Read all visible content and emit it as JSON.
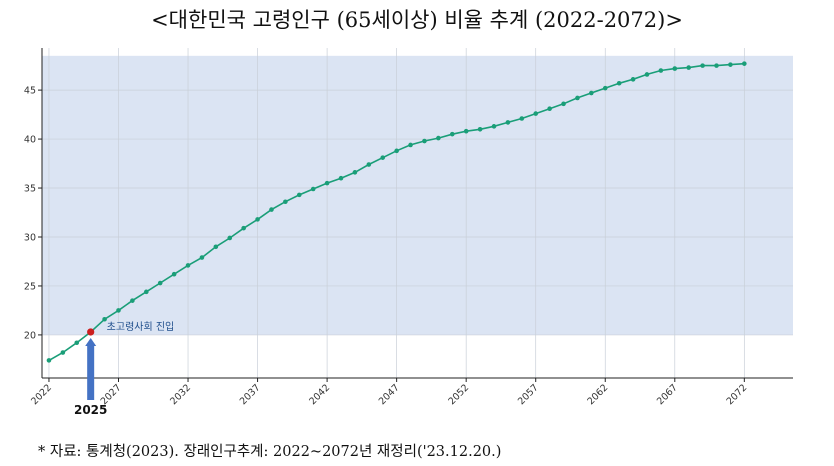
{
  "title": "<대한민국 고령인구 (65세이상) 비율 추계 (2022-2072)>",
  "source": "* 자료: 통계청(2023). 장래인구추계: 2022~2072년 재정리('23.12.20.)",
  "colors": {
    "line": "#1a9e78",
    "highlight_band": "#dbe4f3",
    "highlight_point": "#cc1f1f",
    "arrow": "#4472c4",
    "annotation_text": "#1f4e8c"
  },
  "chart_data": {
    "type": "line",
    "x": [
      2022,
      2023,
      2024,
      2025,
      2026,
      2027,
      2028,
      2029,
      2030,
      2031,
      2032,
      2033,
      2034,
      2035,
      2036,
      2037,
      2038,
      2039,
      2040,
      2041,
      2042,
      2043,
      2044,
      2045,
      2046,
      2047,
      2048,
      2049,
      2050,
      2051,
      2052,
      2053,
      2054,
      2055,
      2056,
      2057,
      2058,
      2059,
      2060,
      2061,
      2062,
      2063,
      2064,
      2065,
      2066,
      2067,
      2068,
      2069,
      2070,
      2071,
      2072
    ],
    "y": [
      17.4,
      18.2,
      19.2,
      20.3,
      21.6,
      22.5,
      23.5,
      24.4,
      25.3,
      26.2,
      27.1,
      27.9,
      29.0,
      29.9,
      30.9,
      31.8,
      32.8,
      33.6,
      34.3,
      34.9,
      35.5,
      36.0,
      36.6,
      37.4,
      38.1,
      38.8,
      39.4,
      39.8,
      40.1,
      40.5,
      40.8,
      41.0,
      41.3,
      41.7,
      42.1,
      42.6,
      43.1,
      43.6,
      44.2,
      44.7,
      45.2,
      45.7,
      46.1,
      46.6,
      47.0,
      47.2,
      47.3,
      47.5,
      47.5,
      47.6,
      47.7
    ],
    "xticks": [
      2022,
      2027,
      2032,
      2037,
      2042,
      2047,
      2052,
      2057,
      2062,
      2067,
      2072
    ],
    "yticks": [
      20,
      25,
      30,
      35,
      40,
      45
    ],
    "xlim": [
      2021.5,
      2075.5
    ],
    "ylim": [
      15.6,
      49.3
    ],
    "highlight_band": [
      20,
      48.5
    ],
    "highlight": {
      "x": 2025,
      "y": 20.3,
      "label": "초고령사회 진입",
      "year_label": "2025"
    },
    "grid": true
  }
}
